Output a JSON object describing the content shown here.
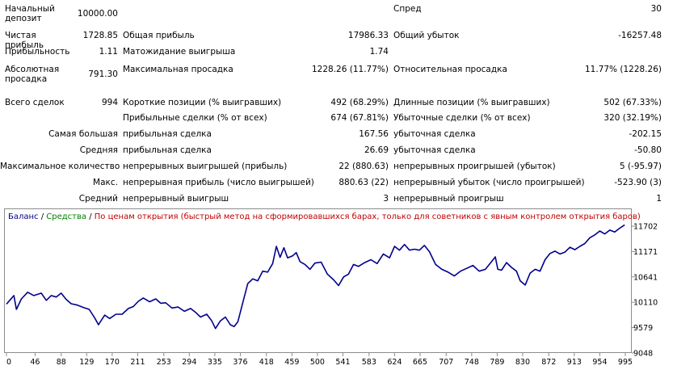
{
  "rows": [
    {
      "top": 5,
      "cells": [
        {
          "label": "Начальный депозит",
          "value": "10000.00"
        },
        {
          "label": "",
          "value": ""
        },
        {
          "label": "Спред",
          "value": "30"
        }
      ]
    },
    {
      "top": 38,
      "cells": [
        {
          "label": "Чистая прибыль",
          "value": "1728.85"
        },
        {
          "label": "Общая прибыль",
          "value": "17986.33"
        },
        {
          "label": "Общий убыток",
          "value": "-16257.48"
        }
      ]
    },
    {
      "top": 58,
      "cells": [
        {
          "label": "Прибыльность",
          "value": "1.11"
        },
        {
          "label": "Матожидание выигрыша",
          "value": "1.74"
        },
        {
          "label": "",
          "value": ""
        }
      ]
    },
    {
      "top": 80,
      "cells": [
        {
          "label": "Абсолютная просадка",
          "value": "791.30"
        },
        {
          "label": "Максимальная просадка",
          "value": "1228.26 (11.77%)"
        },
        {
          "label": "Относительная просадка",
          "value": "11.77% (1228.26)"
        }
      ]
    },
    {
      "top": 121,
      "cells": [
        {
          "label": "Всего сделок",
          "value": "994"
        },
        {
          "label": "Короткие позиции (% выигравших)",
          "value": "492 (68.29%)"
        },
        {
          "label": "Длинные позиции (% выигравших)",
          "value": "502 (67.33%)"
        }
      ]
    },
    {
      "top": 140,
      "cells": [
        {
          "label": "",
          "value": ""
        },
        {
          "label": "Прибыльные сделки (% от всех)",
          "value": "674 (67.81%)"
        },
        {
          "label": "Убыточные сделки (% от всех)",
          "value": "320 (32.19%)"
        }
      ]
    },
    {
      "top": 160,
      "cells": [
        {
          "label": "Самая большая",
          "value": ""
        },
        {
          "label": "прибыльная сделка",
          "value": "167.56"
        },
        {
          "label": "убыточная сделка",
          "value": "-202.15"
        }
      ]
    },
    {
      "top": 180,
      "cells": [
        {
          "label": "Средняя",
          "value": ""
        },
        {
          "label": "прибыльная сделка",
          "value": "26.69"
        },
        {
          "label": "убыточная сделка",
          "value": "-50.80"
        }
      ]
    },
    {
      "top": 200,
      "cells": [
        {
          "label": "Максимальное количество",
          "value": ""
        },
        {
          "label": "непрерывных выигрышей (прибыль)",
          "value": "22 (880.63)"
        },
        {
          "label": "непрерывных проигрышей (убыток)",
          "value": "5 (-95.97)"
        }
      ]
    },
    {
      "top": 220,
      "cells": [
        {
          "label": "Макс.",
          "value": ""
        },
        {
          "label": "непрерывная прибыль (число выигрышей)",
          "value": "880.63 (22)"
        },
        {
          "label": "непрерывный убыток (число проигрышей)",
          "value": "-523.90 (3)"
        }
      ]
    },
    {
      "top": 240,
      "cells": [
        {
          "label": "Средний",
          "value": ""
        },
        {
          "label": "непрерывный выигрыш",
          "value": "3"
        },
        {
          "label": "непрерывный проигрыш",
          "value": "1"
        }
      ]
    }
  ],
  "legend": {
    "balance": "Баланс",
    "sep1": " / ",
    "equity": "Средства",
    "sep2": " / ",
    "mode": "По ценам открытия (быстрый метод на сформировавшихся барах, только для советников с явным контролем открытия баров)"
  },
  "colors": {
    "balance": "#00008b",
    "equity": "#008000",
    "mode": "#c00000",
    "frame": "#8c8c8c"
  },
  "chart_data": {
    "type": "line",
    "series": [
      {
        "name": "Баланс",
        "points": [
          [
            0,
            10070
          ],
          [
            6,
            10160
          ],
          [
            12,
            10250
          ],
          [
            16,
            9960
          ],
          [
            24,
            10180
          ],
          [
            34,
            10320
          ],
          [
            44,
            10250
          ],
          [
            56,
            10300
          ],
          [
            64,
            10150
          ],
          [
            72,
            10250
          ],
          [
            80,
            10220
          ],
          [
            88,
            10300
          ],
          [
            96,
            10170
          ],
          [
            104,
            10080
          ],
          [
            114,
            10050
          ],
          [
            124,
            10000
          ],
          [
            133,
            9960
          ],
          [
            142,
            9780
          ],
          [
            148,
            9640
          ],
          [
            158,
            9840
          ],
          [
            166,
            9770
          ],
          [
            176,
            9860
          ],
          [
            186,
            9860
          ],
          [
            196,
            9980
          ],
          [
            204,
            10020
          ],
          [
            212,
            10130
          ],
          [
            220,
            10200
          ],
          [
            230,
            10120
          ],
          [
            240,
            10180
          ],
          [
            248,
            10090
          ],
          [
            256,
            10100
          ],
          [
            266,
            9990
          ],
          [
            276,
            10010
          ],
          [
            286,
            9920
          ],
          [
            296,
            9980
          ],
          [
            304,
            9900
          ],
          [
            312,
            9800
          ],
          [
            322,
            9860
          ],
          [
            330,
            9720
          ],
          [
            336,
            9560
          ],
          [
            344,
            9720
          ],
          [
            352,
            9800
          ],
          [
            360,
            9640
          ],
          [
            366,
            9600
          ],
          [
            372,
            9700
          ],
          [
            380,
            10100
          ],
          [
            388,
            10500
          ],
          [
            396,
            10600
          ],
          [
            404,
            10560
          ],
          [
            412,
            10760
          ],
          [
            420,
            10740
          ],
          [
            428,
            10920
          ],
          [
            434,
            11280
          ],
          [
            440,
            11050
          ],
          [
            446,
            11250
          ],
          [
            452,
            11040
          ],
          [
            460,
            11080
          ],
          [
            466,
            11150
          ],
          [
            472,
            10960
          ],
          [
            480,
            10900
          ],
          [
            488,
            10800
          ],
          [
            496,
            10930
          ],
          [
            506,
            10950
          ],
          [
            516,
            10700
          ],
          [
            526,
            10580
          ],
          [
            534,
            10460
          ],
          [
            542,
            10640
          ],
          [
            550,
            10700
          ],
          [
            558,
            10900
          ],
          [
            566,
            10860
          ],
          [
            576,
            10940
          ],
          [
            586,
            11000
          ],
          [
            596,
            10920
          ],
          [
            606,
            11120
          ],
          [
            616,
            11040
          ],
          [
            624,
            11280
          ],
          [
            632,
            11200
          ],
          [
            640,
            11320
          ],
          [
            648,
            11200
          ],
          [
            656,
            11220
          ],
          [
            664,
            11200
          ],
          [
            672,
            11300
          ],
          [
            680,
            11170
          ],
          [
            690,
            10900
          ],
          [
            700,
            10800
          ],
          [
            710,
            10740
          ],
          [
            720,
            10660
          ],
          [
            730,
            10760
          ],
          [
            740,
            10820
          ],
          [
            750,
            10880
          ],
          [
            760,
            10760
          ],
          [
            770,
            10800
          ],
          [
            780,
            10960
          ],
          [
            786,
            11060
          ],
          [
            790,
            10800
          ],
          [
            796,
            10780
          ],
          [
            804,
            10940
          ],
          [
            812,
            10840
          ],
          [
            820,
            10760
          ],
          [
            826,
            10560
          ],
          [
            834,
            10470
          ],
          [
            842,
            10720
          ],
          [
            850,
            10800
          ],
          [
            858,
            10760
          ],
          [
            866,
            11000
          ],
          [
            874,
            11130
          ],
          [
            882,
            11180
          ],
          [
            890,
            11120
          ],
          [
            898,
            11160
          ],
          [
            906,
            11260
          ],
          [
            914,
            11210
          ],
          [
            922,
            11280
          ],
          [
            930,
            11340
          ],
          [
            938,
            11460
          ],
          [
            946,
            11520
          ],
          [
            954,
            11600
          ],
          [
            962,
            11540
          ],
          [
            970,
            11620
          ],
          [
            978,
            11580
          ],
          [
            986,
            11660
          ],
          [
            994,
            11729
          ]
        ]
      }
    ],
    "yticks": [
      "11702",
      "11171",
      "10641",
      "10110",
      "9579",
      "9048"
    ],
    "ytick_values": [
      11702,
      11171,
      10641,
      10110,
      9579,
      9048
    ],
    "xticks": [
      "0",
      "46",
      "88",
      "129",
      "170",
      "211",
      "253",
      "294",
      "335",
      "376",
      "418",
      "459",
      "500",
      "541",
      "583",
      "624",
      "665",
      "707",
      "748",
      "789",
      "830",
      "872",
      "913",
      "954",
      "995"
    ],
    "xtick_values": [
      0,
      46,
      88,
      129,
      170,
      211,
      253,
      294,
      335,
      376,
      418,
      459,
      500,
      541,
      583,
      624,
      665,
      707,
      748,
      789,
      830,
      872,
      913,
      954,
      995
    ],
    "xlim": [
      0,
      995
    ],
    "ylim": [
      9048,
      11702
    ],
    "grid": false
  }
}
